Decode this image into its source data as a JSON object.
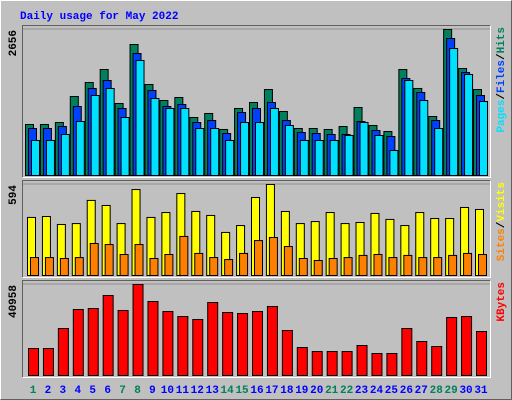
{
  "chart_data": [
    {
      "type": "bar",
      "title": "Daily usage for May 2022",
      "separator": "/",
      "ylim": [
        0,
        2656
      ],
      "yticks": [
        2656
      ],
      "series": [
        {
          "name": "Hits",
          "color": "#00805c",
          "values": [
            928,
            928,
            964,
            1437,
            1692,
            1928,
            1310,
            2383,
            1655,
            1364,
            1419,
            1055,
            1128,
            837,
            1219,
            1328,
            1564,
            1164,
            855,
            855,
            837,
            891,
            1237,
            910,
            800,
            1928,
            1583,
            1073,
            2656,
            1946,
            1564
          ]
        },
        {
          "name": "Files",
          "color": "#0040ff",
          "values": [
            855,
            855,
            891,
            1255,
            1583,
            1728,
            1219,
            2219,
            1546,
            1255,
            1291,
            964,
            1000,
            764,
            1146,
            1219,
            1328,
            1000,
            782,
            764,
            746,
            746,
            982,
            819,
            709,
            1764,
            1510,
            1000,
            2492,
            1874,
            1455
          ]
        },
        {
          "name": "Pages",
          "color": "#00e0ff",
          "values": [
            637,
            637,
            746,
            982,
            1455,
            1583,
            1055,
            2092,
            1401,
            1219,
            1219,
            855,
            855,
            637,
            964,
            964,
            1219,
            910,
            637,
            637,
            637,
            728,
            964,
            728,
            455,
            1728,
            1364,
            855,
            2310,
            1837,
            1346
          ]
        }
      ]
    },
    {
      "type": "bar",
      "separator": "/",
      "ylim": [
        0,
        594
      ],
      "yticks": [
        594
      ],
      "series": [
        {
          "name": "Visits",
          "color": "#ffff00",
          "values": [
            379,
            385,
            333,
            339,
            490,
            457,
            339,
            561,
            379,
            411,
            535,
            418,
            392,
            281,
            326,
            509,
            594,
            418,
            339,
            352,
            411,
            339,
            346,
            405,
            366,
            326,
            411,
            372,
            372,
            444,
            431
          ]
        },
        {
          "name": "Sites",
          "color": "#ff8000",
          "values": [
            117,
            117,
            111,
            117,
            209,
            202,
            137,
            202,
            111,
            137,
            255,
            144,
            117,
            104,
            144,
            228,
            248,
            189,
            111,
            98,
            111,
            117,
            131,
            137,
            117,
            131,
            117,
            117,
            131,
            144,
            137
          ]
        }
      ]
    },
    {
      "type": "bar",
      "ylim": [
        0,
        40958
      ],
      "yticks": [
        40958
      ],
      "series": [
        {
          "name": "KBytes",
          "color": "#ff0000",
          "values": [
            12153,
            12153,
            21155,
            29707,
            30157,
            36008,
            29257,
            40958,
            33307,
            28806,
            26556,
            25206,
            32857,
            28356,
            27906,
            28806,
            31057,
            20255,
            12603,
            10802,
            10802,
            10802,
            13503,
            9902,
            9902,
            21155,
            15303,
            13053,
            26106,
            26556,
            19804
          ]
        }
      ],
      "categories": [
        "1",
        "2",
        "3",
        "4",
        "5",
        "6",
        "7",
        "8",
        "9",
        "10",
        "11",
        "12",
        "13",
        "14",
        "15",
        "16",
        "17",
        "18",
        "19",
        "20",
        "21",
        "22",
        "23",
        "24",
        "25",
        "26",
        "27",
        "28",
        "29",
        "30",
        "31"
      ],
      "category_colors": [
        "#00805c",
        "#0000ff",
        "#0000ff",
        "#0000ff",
        "#0000ff",
        "#0000ff",
        "#00805c",
        "#00805c",
        "#0000ff",
        "#0000ff",
        "#0000ff",
        "#0000ff",
        "#0000ff",
        "#00805c",
        "#00805c",
        "#0000ff",
        "#0000ff",
        "#0000ff",
        "#0000ff",
        "#0000ff",
        "#00805c",
        "#00805c",
        "#0000ff",
        "#0000ff",
        "#0000ff",
        "#0000ff",
        "#0000ff",
        "#00805c",
        "#00805c",
        "#0000ff",
        "#0000ff"
      ]
    }
  ]
}
